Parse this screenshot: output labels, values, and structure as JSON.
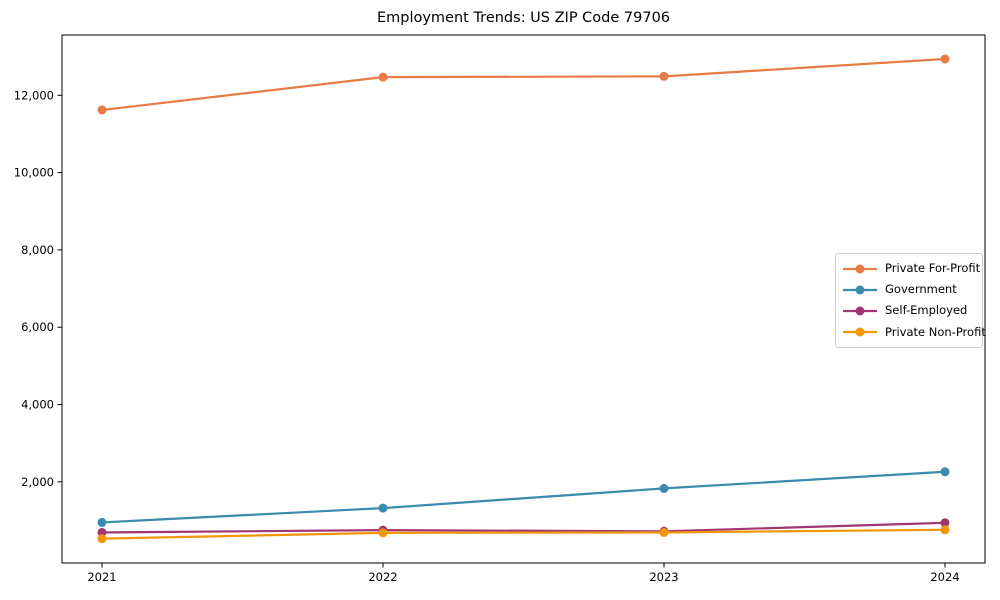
{
  "chart_data": {
    "type": "line",
    "title": "Employment Trends: US ZIP Code 79706",
    "x": [
      "2021",
      "2022",
      "2023",
      "2024"
    ],
    "series": [
      {
        "name": "Private For-Profit",
        "color": "#E87A45",
        "values": [
          11620,
          12470,
          12490,
          12940
        ]
      },
      {
        "name": "Government",
        "color": "#3A8BAD",
        "values": [
          950,
          1320,
          1830,
          2260
        ]
      },
      {
        "name": "Self-Employed",
        "color": "#A03772",
        "values": [
          690,
          750,
          720,
          940
        ]
      },
      {
        "name": "Private Non-Profit",
        "color": "#F3960A",
        "values": [
          530,
          680,
          690,
          760
        ]
      }
    ],
    "xlabel": "",
    "ylabel": "",
    "ylim": [
      -100,
      13560
    ],
    "yticks": [
      2000,
      4000,
      6000,
      8000,
      10000,
      12000
    ],
    "ytick_labels": [
      "2,000",
      "4,000",
      "6,000",
      "8,000",
      "10,000",
      "12,000"
    ],
    "grid": false,
    "legend_position": "center right",
    "marker": "circle",
    "axis_color": "#000000"
  }
}
